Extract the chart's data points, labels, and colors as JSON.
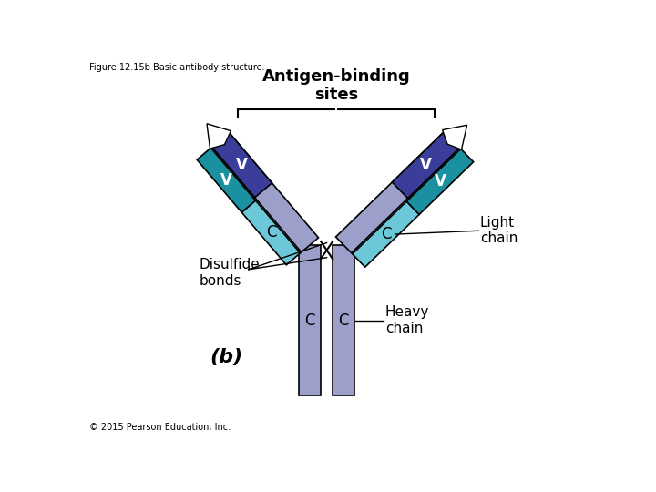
{
  "title": "Figure 12.15b Basic antibody structure.",
  "antigen_binding_label": "Antigen-binding\nsites",
  "light_chain_label": "Light\nchain",
  "heavy_chain_label": "Heavy\nchain",
  "disulfide_label": "Disulfide\nbonds",
  "label_b": "(b)",
  "copyright": "© 2015 Pearson Education, Inc.",
  "color_heavy_chain": "#9b9fc9",
  "color_light_chain_V": "#3060b0",
  "color_light_chain_C": "#6cc8d8",
  "color_heavy_V": "#3a3e9a",
  "color_teal_V": "#1a90a0",
  "color_white": "#ffffff",
  "color_outline": "#000000",
  "bg_color": "#ffffff"
}
